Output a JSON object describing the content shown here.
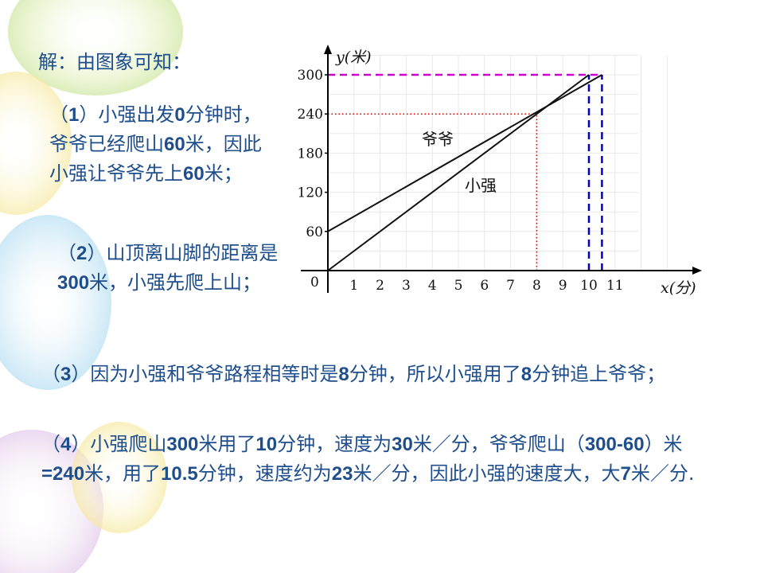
{
  "text": {
    "heading": "解：由图象可知：",
    "p1": [
      {
        "t": "（"
      },
      {
        "t": "1",
        "b": true
      },
      {
        "t": "）小强出发"
      },
      {
        "t": "0",
        "b": true
      },
      {
        "t": "分钟时，爷爷已经爬山"
      },
      {
        "t": "60",
        "b": true
      },
      {
        "t": "米，因此小强让爷爷先上"
      },
      {
        "t": "60",
        "b": true
      },
      {
        "t": "米；"
      }
    ],
    "p2": [
      {
        "t": "（"
      },
      {
        "t": "2",
        "b": true
      },
      {
        "t": "）山顶离山脚的距离是"
      },
      {
        "t": "300",
        "b": true
      },
      {
        "t": "米，小强先爬上山；"
      }
    ],
    "p3": [
      {
        "t": "（"
      },
      {
        "t": "3",
        "b": true
      },
      {
        "t": "）因为小强和爷爷路程相等时是"
      },
      {
        "t": "8",
        "b": true
      },
      {
        "t": "分钟，所以小强用了"
      },
      {
        "t": "8",
        "b": true
      },
      {
        "t": "分钟追上爷爷；"
      }
    ],
    "p4": [
      {
        "t": "（"
      },
      {
        "t": "4",
        "b": true
      },
      {
        "t": "）小强爬山"
      },
      {
        "t": "300",
        "b": true
      },
      {
        "t": "米用了"
      },
      {
        "t": "10",
        "b": true
      },
      {
        "t": "分钟，速度为"
      },
      {
        "t": "30",
        "b": true
      },
      {
        "t": "米／分，爷爷爬山（"
      },
      {
        "t": "300-60",
        "b": true
      },
      {
        "t": "）米"
      },
      {
        "t": "=240",
        "b": true
      },
      {
        "t": "米，用了"
      },
      {
        "t": "10.5",
        "b": true
      },
      {
        "t": "分钟，速度约为"
      },
      {
        "t": "23",
        "b": true
      },
      {
        "t": "米／分，因此小强的速度大，大"
      },
      {
        "t": "7",
        "b": true
      },
      {
        "t": "米／分."
      }
    ]
  },
  "colors": {
    "text": "#1f4e8c",
    "axis": "#000000",
    "magenta_dash": "#cc00cc",
    "blue_dash": "#0000cc",
    "red_dot": "#cc0000"
  },
  "chart_data": {
    "type": "line",
    "xlabel": "x(分)",
    "ylabel": "y(米)",
    "origin_label": "0",
    "xlim": [
      0,
      11
    ],
    "ylim": [
      0,
      300
    ],
    "x_ticks": [
      "1",
      "2",
      "3",
      "4",
      "5",
      "6",
      "7",
      "8",
      "9",
      "10",
      "11"
    ],
    "y_ticks": [
      {
        "v": 60,
        "label": "60"
      },
      {
        "v": 120,
        "label": "120"
      },
      {
        "v": 180,
        "label": "180"
      },
      {
        "v": 240,
        "label": "240"
      },
      {
        "v": 300,
        "label": "300"
      }
    ],
    "series": [
      {
        "name": "爷爷",
        "points": [
          [
            0,
            60
          ],
          [
            10.5,
            300
          ]
        ]
      },
      {
        "name": "小强",
        "points": [
          [
            0,
            0
          ],
          [
            10,
            300
          ]
        ]
      }
    ],
    "guides": {
      "intersection": [
        8,
        240
      ],
      "top": 300,
      "end_xiaoqiang": 10,
      "end_yeye": 10.5
    },
    "grid": true
  }
}
